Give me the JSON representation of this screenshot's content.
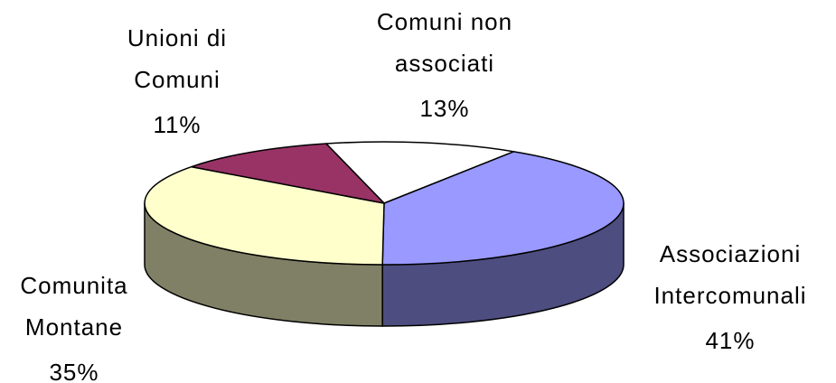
{
  "chart_data": {
    "type": "pie3d",
    "categories": [
      "Comuni non\nassociati",
      "Associazioni\nIntercomunali",
      "Comunita\nMontane",
      "Unioni di\nComuni"
    ],
    "values": [
      13,
      41,
      35,
      11
    ],
    "value_labels": [
      "13%",
      "41%",
      "35%",
      "11%"
    ],
    "colors": [
      "#ffffff",
      "#9999ff",
      "#ffffcc",
      "#993366"
    ],
    "side_colors": [
      "#808080",
      "#4d4d80",
      "#808066",
      "#4d1a33"
    ]
  }
}
